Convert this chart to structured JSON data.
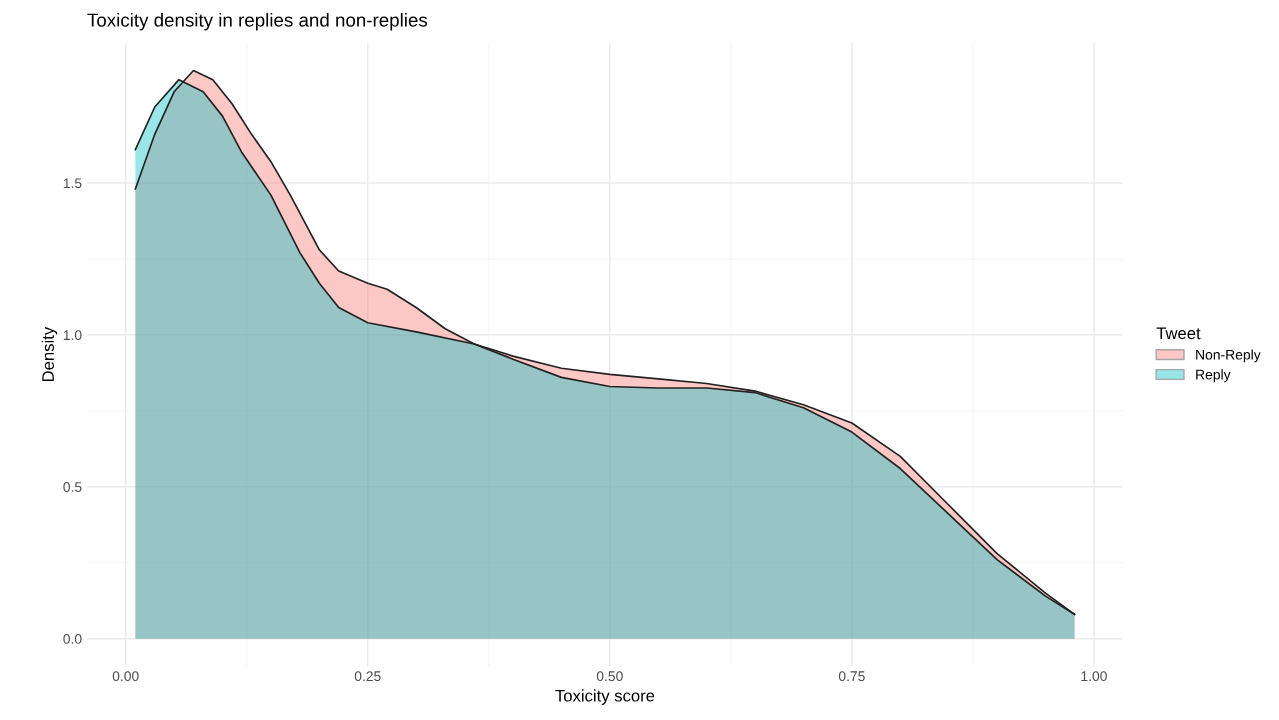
{
  "chart_data": {
    "type": "area",
    "title": "Toxicity density in replies and non-replies",
    "xlabel": "Toxicity score",
    "ylabel": "Density",
    "legend_title": "Tweet",
    "legend": "right",
    "grid": true,
    "xlim": [
      -0.04,
      1.03
    ],
    "ylim": [
      -0.09,
      1.96
    ],
    "xticks": [
      {
        "value": 0,
        "label": "0.00"
      },
      {
        "value": 0.25,
        "label": "0.25"
      },
      {
        "value": 0.5,
        "label": "0.50"
      },
      {
        "value": 0.75,
        "label": "0.75"
      },
      {
        "value": 1,
        "label": "1.00"
      }
    ],
    "yticks": [
      {
        "value": 0,
        "label": "0.0"
      },
      {
        "value": 0.5,
        "label": "0.5"
      },
      {
        "value": 1,
        "label": "1.0"
      },
      {
        "value": 1.5,
        "label": "1.5"
      }
    ],
    "series": [
      {
        "name": "Non-Reply",
        "color": "#f8766d",
        "x": [
          0.01,
          0.03,
          0.05,
          0.07,
          0.09,
          0.11,
          0.13,
          0.15,
          0.17,
          0.2,
          0.22,
          0.25,
          0.27,
          0.3,
          0.33,
          0.36,
          0.4,
          0.45,
          0.5,
          0.55,
          0.6,
          0.65,
          0.7,
          0.75,
          0.8,
          0.85,
          0.9,
          0.95,
          0.98
        ],
        "values": [
          1.48,
          1.66,
          1.8,
          1.87,
          1.84,
          1.76,
          1.66,
          1.57,
          1.46,
          1.28,
          1.21,
          1.17,
          1.15,
          1.09,
          1.02,
          0.97,
          0.93,
          0.89,
          0.87,
          0.855,
          0.84,
          0.815,
          0.77,
          0.71,
          0.6,
          0.44,
          0.28,
          0.15,
          0.08
        ]
      },
      {
        "name": "Reply",
        "color": "#00bfc4",
        "x": [
          0.01,
          0.03,
          0.055,
          0.08,
          0.1,
          0.12,
          0.15,
          0.18,
          0.2,
          0.22,
          0.25,
          0.3,
          0.36,
          0.4,
          0.45,
          0.5,
          0.55,
          0.6,
          0.65,
          0.7,
          0.75,
          0.8,
          0.85,
          0.9,
          0.95,
          0.98
        ],
        "values": [
          1.61,
          1.75,
          1.84,
          1.8,
          1.72,
          1.6,
          1.46,
          1.27,
          1.17,
          1.09,
          1.04,
          1.01,
          0.97,
          0.92,
          0.86,
          0.83,
          0.825,
          0.825,
          0.81,
          0.76,
          0.68,
          0.56,
          0.41,
          0.26,
          0.14,
          0.08
        ]
      }
    ]
  }
}
